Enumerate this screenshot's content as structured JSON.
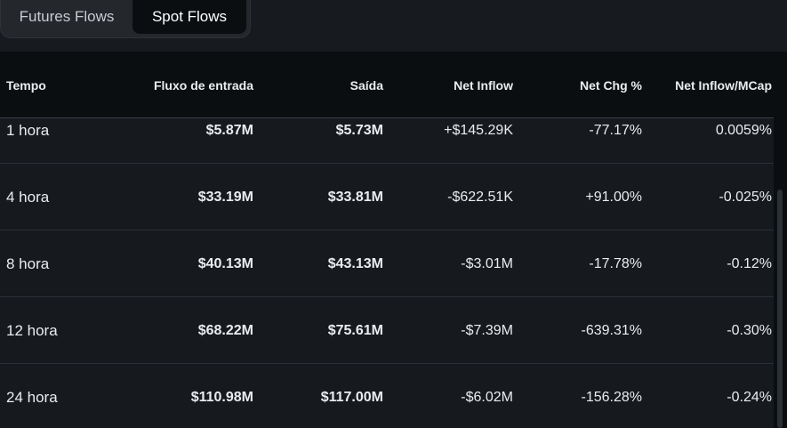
{
  "tabs": [
    {
      "label": "Futures Flows",
      "active": false
    },
    {
      "label": "Spot Flows",
      "active": true
    }
  ],
  "table": {
    "columns": [
      "Tempo",
      "Fluxo de entrada",
      "Saída",
      "Net Inflow",
      "Net Chg %",
      "Net Inflow/MCap"
    ],
    "rows": [
      {
        "time": "1 hora",
        "inflow": "$5.87M",
        "outflow": "$5.73M",
        "net_inflow": "+$145.29K",
        "net_chg": "-77.17%",
        "net_mcap": "0.0059%"
      },
      {
        "time": "4 hora",
        "inflow": "$33.19M",
        "outflow": "$33.81M",
        "net_inflow": "-$622.51K",
        "net_chg": "+91.00%",
        "net_mcap": "-0.025%"
      },
      {
        "time": "8 hora",
        "inflow": "$40.13M",
        "outflow": "$43.13M",
        "net_inflow": "-$3.01M",
        "net_chg": "-17.78%",
        "net_mcap": "-0.12%"
      },
      {
        "time": "12 hora",
        "inflow": "$68.22M",
        "outflow": "$75.61M",
        "net_inflow": "-$7.39M",
        "net_chg": "-639.31%",
        "net_mcap": "-0.30%"
      },
      {
        "time": "24 hora",
        "inflow": "$110.98M",
        "outflow": "$117.00M",
        "net_inflow": "-$6.02M",
        "net_chg": "-156.28%",
        "net_mcap": "-0.24%"
      }
    ]
  },
  "colors": {
    "positive": "#2ebd85",
    "negative": "#f6465d",
    "background": "#161a1e",
    "header_background": "#0b0e11"
  }
}
